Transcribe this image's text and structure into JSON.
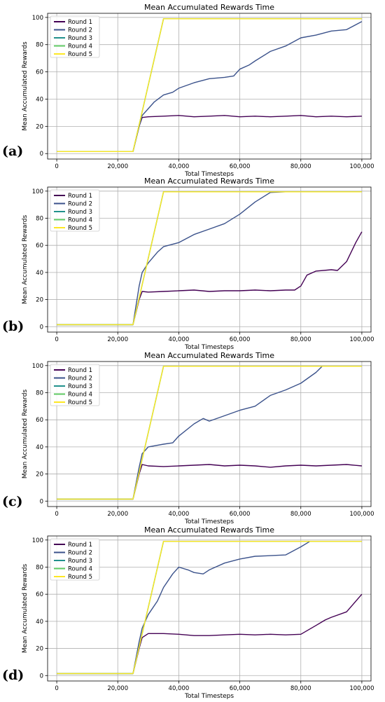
{
  "chart_data": [
    {
      "panel": "(a)",
      "type": "line",
      "title": "Mean Accumulated Rewards Time",
      "xlabel": "Total Timesteps",
      "ylabel": "Mean Accumulated Rewards",
      "xlim": [
        -3000,
        103000
      ],
      "ylim": [
        -4,
        103
      ],
      "xticks": [
        0,
        20000,
        40000,
        60000,
        80000,
        100000
      ],
      "xtick_labels": [
        "0",
        "20,000",
        "40,000",
        "60,000",
        "80,000",
        "100,000"
      ],
      "yticks": [
        0,
        20,
        40,
        60,
        80,
        100
      ],
      "grid": true,
      "legend": "top-left",
      "series": [
        {
          "name": "Round 1",
          "color": "#440154",
          "x": [
            0,
            25000,
            27000,
            28000,
            30000,
            35000,
            40000,
            45000,
            50000,
            55000,
            60000,
            65000,
            70000,
            75000,
            80000,
            85000,
            90000,
            95000,
            100000
          ],
          "y": [
            1.5,
            1.5,
            20,
            26.5,
            27,
            27.5,
            28,
            27,
            27.5,
            28,
            27,
            27.5,
            27,
            27.5,
            28,
            27,
            27.5,
            27,
            27.5
          ]
        },
        {
          "name": "Round 2",
          "color": "#3b528b",
          "x": [
            0,
            25000,
            27000,
            28000,
            30000,
            32000,
            35000,
            38000,
            40000,
            45000,
            50000,
            55000,
            58000,
            60000,
            63000,
            65000,
            70000,
            75000,
            80000,
            85000,
            90000,
            95000,
            100000
          ],
          "y": [
            1.5,
            1.5,
            20,
            28,
            33,
            38,
            43,
            45,
            48,
            52,
            55,
            56,
            57,
            62,
            65,
            68,
            75,
            79,
            85,
            87,
            90,
            91,
            97
          ]
        },
        {
          "name": "Round 3",
          "color": "#21918c",
          "x": [
            0,
            25000,
            35000,
            100000
          ],
          "y": [
            1.5,
            1.5,
            99,
            99
          ]
        },
        {
          "name": "Round 4",
          "color": "#5ec962",
          "x": [
            0,
            25000,
            35000,
            100000
          ],
          "y": [
            1.5,
            1.5,
            99,
            99
          ]
        },
        {
          "name": "Round 5",
          "color": "#fde725",
          "x": [
            0,
            25000,
            35000,
            100000
          ],
          "y": [
            1.5,
            1.5,
            99,
            99
          ]
        }
      ]
    },
    {
      "panel": "(b)",
      "type": "line",
      "title": "Mean Accumulated Rewards Time",
      "xlabel": "Total Timesteps",
      "ylabel": "Mean Accumulated Rewards",
      "xlim": [
        -3000,
        103000
      ],
      "ylim": [
        -4,
        103
      ],
      "xticks": [
        0,
        20000,
        40000,
        60000,
        80000,
        100000
      ],
      "xtick_labels": [
        "0",
        "20,000",
        "40,000",
        "60,000",
        "80,000",
        "100,000"
      ],
      "yticks": [
        0,
        20,
        40,
        60,
        80,
        100
      ],
      "grid": true,
      "legend": "top-left",
      "series": [
        {
          "name": "Round 1",
          "color": "#440154",
          "x": [
            0,
            25000,
            27000,
            28000,
            30000,
            35000,
            40000,
            45000,
            50000,
            55000,
            60000,
            65000,
            70000,
            75000,
            78000,
            80000,
            82000,
            85000,
            90000,
            92000,
            95000,
            98000,
            100000
          ],
          "y": [
            1.5,
            1.5,
            20,
            26,
            25.5,
            26,
            26.5,
            27,
            26,
            26.5,
            26.5,
            27,
            26.5,
            27,
            27,
            30,
            38,
            41,
            42,
            41.5,
            48,
            62,
            70
          ]
        },
        {
          "name": "Round 2",
          "color": "#3b528b",
          "x": [
            0,
            25000,
            27000,
            28000,
            30000,
            33000,
            35000,
            40000,
            45000,
            50000,
            55000,
            60000,
            65000,
            70000,
            75000,
            100000
          ],
          "y": [
            1.5,
            1.5,
            30,
            40,
            47,
            55,
            59,
            62,
            68,
            72,
            76,
            83,
            92,
            99,
            99.5,
            99.5
          ]
        },
        {
          "name": "Round 3",
          "color": "#21918c",
          "x": [
            0,
            25000,
            35000,
            100000
          ],
          "y": [
            1.5,
            1.5,
            99.5,
            99.5
          ]
        },
        {
          "name": "Round 4",
          "color": "#5ec962",
          "x": [
            0,
            25000,
            35000,
            100000
          ],
          "y": [
            1.5,
            1.5,
            99.5,
            99.5
          ]
        },
        {
          "name": "Round 5",
          "color": "#fde725",
          "x": [
            0,
            25000,
            35000,
            100000
          ],
          "y": [
            1.5,
            1.5,
            99.5,
            99.5
          ]
        }
      ]
    },
    {
      "panel": "(c)",
      "type": "line",
      "title": "Mean Accumulated Rewards Time",
      "xlabel": "Total Timesteps",
      "ylabel": "Mean Accumulated Rewards",
      "xlim": [
        -3000,
        103000
      ],
      "ylim": [
        -4,
        103
      ],
      "xticks": [
        0,
        20000,
        40000,
        60000,
        80000,
        100000
      ],
      "xtick_labels": [
        "0",
        "20,000",
        "40,000",
        "60,000",
        "80,000",
        "100,000"
      ],
      "yticks": [
        0,
        20,
        40,
        60,
        80,
        100
      ],
      "grid": true,
      "legend": "top-left",
      "series": [
        {
          "name": "Round 1",
          "color": "#440154",
          "x": [
            0,
            25000,
            27000,
            28000,
            30000,
            35000,
            40000,
            45000,
            50000,
            55000,
            60000,
            65000,
            70000,
            75000,
            80000,
            85000,
            90000,
            95000,
            100000
          ],
          "y": [
            1.5,
            1.5,
            20,
            27,
            26,
            25.5,
            26,
            26.5,
            27,
            26,
            26.5,
            26,
            25,
            26,
            26.5,
            26,
            26.5,
            27,
            26
          ]
        },
        {
          "name": "Round 2",
          "color": "#3b528b",
          "x": [
            0,
            25000,
            27000,
            28000,
            30000,
            35000,
            38000,
            40000,
            45000,
            48000,
            50000,
            55000,
            60000,
            65000,
            70000,
            75000,
            80000,
            85000,
            87000,
            100000
          ],
          "y": [
            1.5,
            1.5,
            25,
            35,
            40,
            42,
            43,
            48,
            57,
            61,
            59,
            63,
            67,
            70,
            78,
            82,
            87,
            95,
            99.5,
            99.5
          ]
        },
        {
          "name": "Round 3",
          "color": "#21918c",
          "x": [
            0,
            25000,
            35000,
            100000
          ],
          "y": [
            1.5,
            1.5,
            99.5,
            99.5
          ]
        },
        {
          "name": "Round 4",
          "color": "#5ec962",
          "x": [
            0,
            25000,
            35000,
            100000
          ],
          "y": [
            1.5,
            1.5,
            99.5,
            99.5
          ]
        },
        {
          "name": "Round 5",
          "color": "#fde725",
          "x": [
            0,
            25000,
            35000,
            100000
          ],
          "y": [
            1.5,
            1.5,
            99.5,
            99.5
          ]
        }
      ]
    },
    {
      "panel": "(d)",
      "type": "line",
      "title": "Mean Accumulated Rewards Time",
      "xlabel": "Total Timesteps",
      "ylabel": "Mean Accumulated Rewards",
      "xlim": [
        -3000,
        103000
      ],
      "ylim": [
        -4,
        103
      ],
      "xticks": [
        0,
        20000,
        40000,
        60000,
        80000,
        100000
      ],
      "xtick_labels": [
        "0",
        "20,000",
        "40,000",
        "60,000",
        "80,000",
        "100,000"
      ],
      "yticks": [
        0,
        20,
        40,
        60,
        80,
        100
      ],
      "grid": true,
      "legend": "top-left",
      "series": [
        {
          "name": "Round 1",
          "color": "#440154",
          "x": [
            0,
            25000,
            27000,
            28000,
            30000,
            35000,
            40000,
            45000,
            50000,
            55000,
            60000,
            65000,
            70000,
            75000,
            80000,
            85000,
            88000,
            90000,
            95000,
            100000
          ],
          "y": [
            1.5,
            1.5,
            20,
            28,
            31,
            31,
            30.5,
            29.5,
            29.5,
            30,
            30.5,
            30,
            30.5,
            30,
            30.5,
            37,
            41,
            43,
            47,
            60
          ]
        },
        {
          "name": "Round 2",
          "color": "#3b528b",
          "x": [
            0,
            25000,
            27000,
            28000,
            30000,
            33000,
            35000,
            38000,
            40000,
            43000,
            45000,
            48000,
            50000,
            55000,
            60000,
            65000,
            70000,
            75000,
            80000,
            83000,
            100000
          ],
          "y": [
            1.5,
            1.5,
            25,
            35,
            45,
            55,
            65,
            75,
            80,
            78,
            76,
            75,
            78,
            83,
            86,
            88,
            88.5,
            89,
            95,
            99,
            99
          ]
        },
        {
          "name": "Round 3",
          "color": "#21918c",
          "x": [
            0,
            25000,
            35000,
            100000
          ],
          "y": [
            1.5,
            1.5,
            99,
            99
          ]
        },
        {
          "name": "Round 4",
          "color": "#5ec962",
          "x": [
            0,
            25000,
            35000,
            100000
          ],
          "y": [
            1.5,
            1.5,
            99,
            99
          ]
        },
        {
          "name": "Round 5",
          "color": "#fde725",
          "x": [
            0,
            25000,
            35000,
            100000
          ],
          "y": [
            1.5,
            1.5,
            99,
            99
          ]
        }
      ]
    }
  ]
}
